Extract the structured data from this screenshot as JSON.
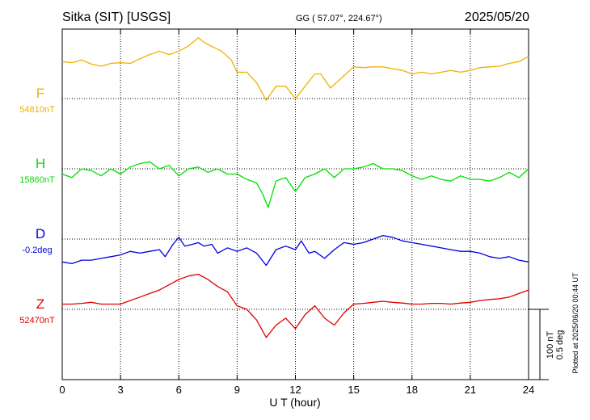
{
  "header": {
    "station": "Sitka (SIT)  [USGS]",
    "coords": "GG ( 57.07°, 224.67°)",
    "date": "2025/05/20"
  },
  "side_note": "Plotted at 2025/06/20 00:44 UT",
  "scale_bar": {
    "line1": "100 nT",
    "line2": "0.5 deg"
  },
  "chart_data": {
    "type": "line",
    "xlabel": "U T (hour)",
    "xlim": [
      0,
      24
    ],
    "x_ticks": [
      "0",
      "3",
      "6",
      "9",
      "12",
      "15",
      "18",
      "21",
      "24"
    ],
    "grid": true,
    "series": [
      {
        "name": "F",
        "baseline_label": "54810nT",
        "color": "#f0b000",
        "offset_units": 0.8,
        "points": [
          [
            0,
            0.25
          ],
          [
            0.5,
            0.22
          ],
          [
            1,
            0.3
          ],
          [
            1.5,
            0.18
          ],
          [
            2,
            0.12
          ],
          [
            2.5,
            0.2
          ],
          [
            3,
            0.22
          ],
          [
            3.5,
            0.2
          ],
          [
            4,
            0.33
          ],
          [
            4.5,
            0.45
          ],
          [
            5,
            0.55
          ],
          [
            5.5,
            0.45
          ],
          [
            6,
            0.55
          ],
          [
            6.5,
            0.7
          ],
          [
            7,
            0.93
          ],
          [
            7.3,
            0.8
          ],
          [
            7.7,
            0.68
          ],
          [
            8.2,
            0.55
          ],
          [
            8.7,
            0.3
          ],
          [
            9,
            -0.05
          ],
          [
            9.5,
            -0.05
          ],
          [
            10,
            -0.35
          ],
          [
            10.5,
            -0.85
          ],
          [
            11,
            -0.45
          ],
          [
            11.5,
            -0.45
          ],
          [
            12,
            -0.8
          ],
          [
            12.5,
            -0.45
          ],
          [
            13,
            -0.1
          ],
          [
            13.3,
            -0.1
          ],
          [
            13.8,
            -0.5
          ],
          [
            14.2,
            -0.3
          ],
          [
            15,
            0.1
          ],
          [
            15.5,
            0.08
          ],
          [
            16,
            0.1
          ],
          [
            16.5,
            0.1
          ],
          [
            17,
            0.05
          ],
          [
            17.5,
            0.0
          ],
          [
            18,
            -0.1
          ],
          [
            18.5,
            -0.05
          ],
          [
            19,
            -0.1
          ],
          [
            19.5,
            -0.05
          ],
          [
            20,
            0.0
          ],
          [
            20.5,
            -0.05
          ],
          [
            21,
            0.0
          ],
          [
            21.5,
            0.08
          ],
          [
            22,
            0.1
          ],
          [
            22.5,
            0.12
          ],
          [
            23,
            0.2
          ],
          [
            23.5,
            0.25
          ],
          [
            24,
            0.4
          ]
        ]
      },
      {
        "name": "H",
        "baseline_label": "15860nT",
        "color": "#00e000",
        "offset_units": -0.2,
        "points": [
          [
            0,
            0.05
          ],
          [
            0.5,
            -0.05
          ],
          [
            1,
            0.2
          ],
          [
            1.5,
            0.15
          ],
          [
            2,
            0.0
          ],
          [
            2.5,
            0.2
          ],
          [
            3,
            0.05
          ],
          [
            3.5,
            0.25
          ],
          [
            4,
            0.35
          ],
          [
            4.5,
            0.4
          ],
          [
            5,
            0.2
          ],
          [
            5.5,
            0.3
          ],
          [
            6,
            0.0
          ],
          [
            6.5,
            0.2
          ],
          [
            7,
            0.25
          ],
          [
            7.5,
            0.1
          ],
          [
            8,
            0.2
          ],
          [
            8.5,
            0.05
          ],
          [
            9,
            0.05
          ],
          [
            9.5,
            -0.1
          ],
          [
            10,
            -0.2
          ],
          [
            10.3,
            -0.5
          ],
          [
            10.6,
            -0.9
          ],
          [
            11,
            -0.15
          ],
          [
            11.5,
            -0.05
          ],
          [
            12,
            -0.45
          ],
          [
            12.5,
            -0.05
          ],
          [
            13,
            0.05
          ],
          [
            13.5,
            0.2
          ],
          [
            14,
            -0.05
          ],
          [
            14.5,
            0.2
          ],
          [
            15,
            0.2
          ],
          [
            15.5,
            0.25
          ],
          [
            16,
            0.35
          ],
          [
            16.5,
            0.2
          ],
          [
            17,
            0.2
          ],
          [
            17.5,
            0.15
          ],
          [
            18,
            0.0
          ],
          [
            18.5,
            -0.1
          ],
          [
            19,
            0.0
          ],
          [
            19.5,
            -0.1
          ],
          [
            20,
            -0.15
          ],
          [
            20.5,
            0.0
          ],
          [
            21,
            -0.1
          ],
          [
            21.5,
            -0.1
          ],
          [
            22,
            -0.15
          ],
          [
            22.5,
            -0.05
          ],
          [
            23,
            0.1
          ],
          [
            23.5,
            -0.05
          ],
          [
            24,
            0.2
          ]
        ]
      },
      {
        "name": "D",
        "baseline_label": "-0.2deg",
        "color": "#0000e0",
        "offset_units": -0.3,
        "points": [
          [
            0,
            -0.35
          ],
          [
            0.5,
            -0.4
          ],
          [
            1,
            -0.3
          ],
          [
            1.5,
            -0.3
          ],
          [
            2,
            -0.25
          ],
          [
            2.5,
            -0.2
          ],
          [
            3,
            -0.15
          ],
          [
            3.5,
            -0.05
          ],
          [
            4,
            -0.1
          ],
          [
            4.5,
            -0.05
          ],
          [
            5,
            0.0
          ],
          [
            5.3,
            -0.2
          ],
          [
            5.7,
            0.15
          ],
          [
            6,
            0.35
          ],
          [
            6.3,
            0.1
          ],
          [
            6.7,
            0.15
          ],
          [
            7,
            0.2
          ],
          [
            7.3,
            0.1
          ],
          [
            7.7,
            0.15
          ],
          [
            8,
            -0.1
          ],
          [
            8.5,
            0.05
          ],
          [
            9,
            -0.05
          ],
          [
            9.5,
            0.05
          ],
          [
            10,
            -0.1
          ],
          [
            10.5,
            -0.45
          ],
          [
            11,
            0.0
          ],
          [
            11.5,
            0.1
          ],
          [
            12,
            0.0
          ],
          [
            12.3,
            0.25
          ],
          [
            12.7,
            -0.1
          ],
          [
            13,
            -0.05
          ],
          [
            13.5,
            -0.25
          ],
          [
            14,
            0.0
          ],
          [
            14.5,
            0.2
          ],
          [
            15,
            0.15
          ],
          [
            15.5,
            0.2
          ],
          [
            16,
            0.3
          ],
          [
            16.5,
            0.4
          ],
          [
            17,
            0.35
          ],
          [
            17.5,
            0.25
          ],
          [
            18,
            0.2
          ],
          [
            18.5,
            0.15
          ],
          [
            19,
            0.1
          ],
          [
            19.5,
            0.05
          ],
          [
            20,
            0.0
          ],
          [
            20.5,
            -0.05
          ],
          [
            21,
            -0.05
          ],
          [
            21.5,
            -0.1
          ],
          [
            22,
            -0.2
          ],
          [
            22.5,
            -0.25
          ],
          [
            23,
            -0.2
          ],
          [
            23.5,
            -0.3
          ],
          [
            24,
            -0.35
          ]
        ]
      },
      {
        "name": "Z",
        "baseline_label": "52470nT",
        "color": "#e00000",
        "offset_units": 0.2,
        "points": [
          [
            0,
            -0.05
          ],
          [
            0.5,
            -0.05
          ],
          [
            1,
            -0.03
          ],
          [
            1.5,
            0.0
          ],
          [
            2,
            -0.05
          ],
          [
            2.5,
            -0.05
          ],
          [
            3,
            -0.05
          ],
          [
            3.5,
            0.05
          ],
          [
            4,
            0.15
          ],
          [
            4.5,
            0.25
          ],
          [
            5,
            0.35
          ],
          [
            5.5,
            0.5
          ],
          [
            6,
            0.65
          ],
          [
            6.5,
            0.75
          ],
          [
            7,
            0.8
          ],
          [
            7.5,
            0.65
          ],
          [
            8,
            0.45
          ],
          [
            8.5,
            0.3
          ],
          [
            9,
            -0.1
          ],
          [
            9.5,
            -0.2
          ],
          [
            10,
            -0.5
          ],
          [
            10.5,
            -1.0
          ],
          [
            11,
            -0.65
          ],
          [
            11.5,
            -0.45
          ],
          [
            12,
            -0.75
          ],
          [
            12.5,
            -0.35
          ],
          [
            13,
            -0.1
          ],
          [
            13.5,
            -0.45
          ],
          [
            14,
            -0.65
          ],
          [
            14.5,
            -0.3
          ],
          [
            15,
            -0.05
          ],
          [
            15.5,
            -0.03
          ],
          [
            16,
            0.0
          ],
          [
            16.5,
            0.03
          ],
          [
            17,
            0.0
          ],
          [
            17.5,
            -0.02
          ],
          [
            18,
            -0.05
          ],
          [
            18.5,
            -0.05
          ],
          [
            19,
            -0.03
          ],
          [
            19.5,
            -0.03
          ],
          [
            20,
            -0.05
          ],
          [
            20.5,
            -0.02
          ],
          [
            21,
            0.0
          ],
          [
            21.5,
            0.05
          ],
          [
            22,
            0.08
          ],
          [
            22.5,
            0.1
          ],
          [
            23,
            0.15
          ],
          [
            23.5,
            0.25
          ],
          [
            24,
            0.35
          ]
        ]
      }
    ]
  }
}
